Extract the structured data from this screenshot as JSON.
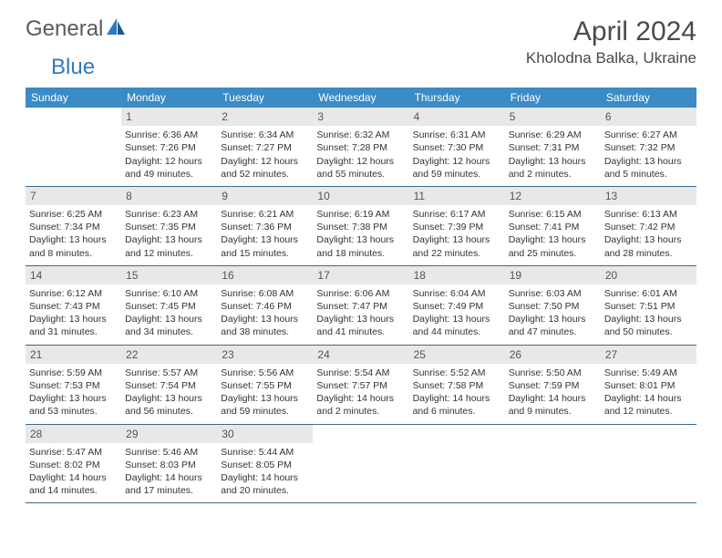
{
  "logo": {
    "text1": "General",
    "text2": "Blue"
  },
  "title": "April 2024",
  "location": "Kholodna Balka, Ukraine",
  "weekdays": [
    "Sunday",
    "Monday",
    "Tuesday",
    "Wednesday",
    "Thursday",
    "Friday",
    "Saturday"
  ],
  "colors": {
    "header_bg": "#3b8bc6",
    "header_text": "#ffffff",
    "daynum_bg": "#e8e8e8",
    "border": "#3b6a8f",
    "logo_gray": "#5a5a5a",
    "logo_blue": "#2d7bc0"
  },
  "weeks": [
    [
      null,
      {
        "n": "1",
        "sr": "6:36 AM",
        "ss": "7:26 PM",
        "d1": "12 hours",
        "d2": "and 49 minutes."
      },
      {
        "n": "2",
        "sr": "6:34 AM",
        "ss": "7:27 PM",
        "d1": "12 hours",
        "d2": "and 52 minutes."
      },
      {
        "n": "3",
        "sr": "6:32 AM",
        "ss": "7:28 PM",
        "d1": "12 hours",
        "d2": "and 55 minutes."
      },
      {
        "n": "4",
        "sr": "6:31 AM",
        "ss": "7:30 PM",
        "d1": "12 hours",
        "d2": "and 59 minutes."
      },
      {
        "n": "5",
        "sr": "6:29 AM",
        "ss": "7:31 PM",
        "d1": "13 hours",
        "d2": "and 2 minutes."
      },
      {
        "n": "6",
        "sr": "6:27 AM",
        "ss": "7:32 PM",
        "d1": "13 hours",
        "d2": "and 5 minutes."
      }
    ],
    [
      {
        "n": "7",
        "sr": "6:25 AM",
        "ss": "7:34 PM",
        "d1": "13 hours",
        "d2": "and 8 minutes."
      },
      {
        "n": "8",
        "sr": "6:23 AM",
        "ss": "7:35 PM",
        "d1": "13 hours",
        "d2": "and 12 minutes."
      },
      {
        "n": "9",
        "sr": "6:21 AM",
        "ss": "7:36 PM",
        "d1": "13 hours",
        "d2": "and 15 minutes."
      },
      {
        "n": "10",
        "sr": "6:19 AM",
        "ss": "7:38 PM",
        "d1": "13 hours",
        "d2": "and 18 minutes."
      },
      {
        "n": "11",
        "sr": "6:17 AM",
        "ss": "7:39 PM",
        "d1": "13 hours",
        "d2": "and 22 minutes."
      },
      {
        "n": "12",
        "sr": "6:15 AM",
        "ss": "7:41 PM",
        "d1": "13 hours",
        "d2": "and 25 minutes."
      },
      {
        "n": "13",
        "sr": "6:13 AM",
        "ss": "7:42 PM",
        "d1": "13 hours",
        "d2": "and 28 minutes."
      }
    ],
    [
      {
        "n": "14",
        "sr": "6:12 AM",
        "ss": "7:43 PM",
        "d1": "13 hours",
        "d2": "and 31 minutes."
      },
      {
        "n": "15",
        "sr": "6:10 AM",
        "ss": "7:45 PM",
        "d1": "13 hours",
        "d2": "and 34 minutes."
      },
      {
        "n": "16",
        "sr": "6:08 AM",
        "ss": "7:46 PM",
        "d1": "13 hours",
        "d2": "and 38 minutes."
      },
      {
        "n": "17",
        "sr": "6:06 AM",
        "ss": "7:47 PM",
        "d1": "13 hours",
        "d2": "and 41 minutes."
      },
      {
        "n": "18",
        "sr": "6:04 AM",
        "ss": "7:49 PM",
        "d1": "13 hours",
        "d2": "and 44 minutes."
      },
      {
        "n": "19",
        "sr": "6:03 AM",
        "ss": "7:50 PM",
        "d1": "13 hours",
        "d2": "and 47 minutes."
      },
      {
        "n": "20",
        "sr": "6:01 AM",
        "ss": "7:51 PM",
        "d1": "13 hours",
        "d2": "and 50 minutes."
      }
    ],
    [
      {
        "n": "21",
        "sr": "5:59 AM",
        "ss": "7:53 PM",
        "d1": "13 hours",
        "d2": "and 53 minutes."
      },
      {
        "n": "22",
        "sr": "5:57 AM",
        "ss": "7:54 PM",
        "d1": "13 hours",
        "d2": "and 56 minutes."
      },
      {
        "n": "23",
        "sr": "5:56 AM",
        "ss": "7:55 PM",
        "d1": "13 hours",
        "d2": "and 59 minutes."
      },
      {
        "n": "24",
        "sr": "5:54 AM",
        "ss": "7:57 PM",
        "d1": "14 hours",
        "d2": "and 2 minutes."
      },
      {
        "n": "25",
        "sr": "5:52 AM",
        "ss": "7:58 PM",
        "d1": "14 hours",
        "d2": "and 6 minutes."
      },
      {
        "n": "26",
        "sr": "5:50 AM",
        "ss": "7:59 PM",
        "d1": "14 hours",
        "d2": "and 9 minutes."
      },
      {
        "n": "27",
        "sr": "5:49 AM",
        "ss": "8:01 PM",
        "d1": "14 hours",
        "d2": "and 12 minutes."
      }
    ],
    [
      {
        "n": "28",
        "sr": "5:47 AM",
        "ss": "8:02 PM",
        "d1": "14 hours",
        "d2": "and 14 minutes."
      },
      {
        "n": "29",
        "sr": "5:46 AM",
        "ss": "8:03 PM",
        "d1": "14 hours",
        "d2": "and 17 minutes."
      },
      {
        "n": "30",
        "sr": "5:44 AM",
        "ss": "8:05 PM",
        "d1": "14 hours",
        "d2": "and 20 minutes."
      },
      null,
      null,
      null,
      null
    ]
  ]
}
